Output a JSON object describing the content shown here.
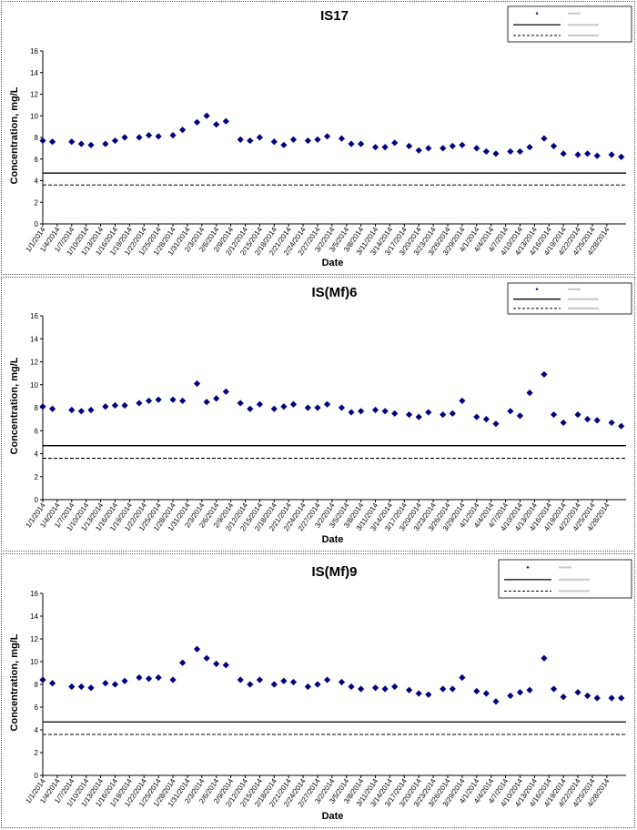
{
  "chart_data": [
    {
      "type": "scatter",
      "title": "IS17",
      "xlabel": "Date",
      "ylabel": "Concentration, mg/L",
      "ylim": [
        0,
        16
      ],
      "yticks": [
        "0",
        "2",
        "4",
        "6",
        "8",
        "10",
        "12",
        "14",
        "16"
      ],
      "x_tick_labels": [
        "1/1/2014",
        "1/4/2014",
        "1/7/2014",
        "1/10/2014",
        "1/13/2014",
        "1/16/2014",
        "1/19/2014",
        "1/22/2014",
        "1/25/2014",
        "1/28/2014",
        "1/31/2014",
        "2/3/2014",
        "2/6/2014",
        "2/9/2014",
        "2/12/2014",
        "2/15/2014",
        "2/18/2014",
        "2/21/2014",
        "2/24/2014",
        "2/27/2014",
        "3/2/2014",
        "3/5/2014",
        "3/8/2014",
        "3/11/2014",
        "3/14/2014",
        "3/17/2014",
        "3/20/2014",
        "3/23/2014",
        "3/26/2014",
        "3/29/2014",
        "4/1/2014",
        "4/4/2014",
        "4/7/2014",
        "4/10/2014",
        "4/13/2014",
        "4/16/2014",
        "4/19/2014",
        "4/22/2014",
        "4/25/2014",
        "4/28/2014"
      ],
      "grid": false,
      "legend_position": "top-right",
      "reference_lines": [
        {
          "style": "solid",
          "value": 4.7
        },
        {
          "style": "dashed",
          "value": 3.6
        }
      ],
      "series": [
        {
          "marker": "diamond",
          "color": "#000080",
          "points": [
            [
              "1/1/2014",
              7.7
            ],
            [
              "1/3/2014",
              7.6
            ],
            [
              "1/7/2014",
              7.6
            ],
            [
              "1/9/2014",
              7.4
            ],
            [
              "1/11/2014",
              7.3
            ],
            [
              "1/14/2014",
              7.4
            ],
            [
              "1/16/2014",
              7.7
            ],
            [
              "1/18/2014",
              8.0
            ],
            [
              "1/21/2014",
              8.0
            ],
            [
              "1/23/2014",
              8.2
            ],
            [
              "1/25/2014",
              8.1
            ],
            [
              "1/28/2014",
              8.2
            ],
            [
              "1/30/2014",
              8.7
            ],
            [
              "2/2/2014",
              9.4
            ],
            [
              "2/4/2014",
              10.0
            ],
            [
              "2/6/2014",
              9.2
            ],
            [
              "2/8/2014",
              9.5
            ],
            [
              "2/11/2014",
              7.8
            ],
            [
              "2/13/2014",
              7.7
            ],
            [
              "2/15/2014",
              8.0
            ],
            [
              "2/18/2014",
              7.6
            ],
            [
              "2/20/2014",
              7.3
            ],
            [
              "2/22/2014",
              7.8
            ],
            [
              "2/25/2014",
              7.7
            ],
            [
              "2/27/2014",
              7.8
            ],
            [
              "3/1/2014",
              8.1
            ],
            [
              "3/4/2014",
              7.9
            ],
            [
              "3/6/2014",
              7.4
            ],
            [
              "3/8/2014",
              7.4
            ],
            [
              "3/11/2014",
              7.1
            ],
            [
              "3/13/2014",
              7.1
            ],
            [
              "3/15/2014",
              7.5
            ],
            [
              "3/18/2014",
              7.2
            ],
            [
              "3/20/2014",
              6.8
            ],
            [
              "3/22/2014",
              7.0
            ],
            [
              "3/25/2014",
              7.0
            ],
            [
              "3/27/2014",
              7.2
            ],
            [
              "3/29/2014",
              7.3
            ],
            [
              "4/1/2014",
              7.0
            ],
            [
              "4/3/2014",
              6.7
            ],
            [
              "4/5/2014",
              6.5
            ],
            [
              "4/8/2014",
              6.7
            ],
            [
              "4/10/2014",
              6.7
            ],
            [
              "4/12/2014",
              7.1
            ],
            [
              "4/15/2014",
              7.9
            ],
            [
              "4/17/2014",
              7.2
            ],
            [
              "4/19/2014",
              6.5
            ],
            [
              "4/22/2014",
              6.4
            ],
            [
              "4/24/2014",
              6.5
            ],
            [
              "4/26/2014",
              6.3
            ],
            [
              "4/29/2014",
              6.4
            ],
            [
              "5/1/2014",
              6.2
            ]
          ]
        }
      ]
    },
    {
      "type": "scatter",
      "title": "IS(Mf)6",
      "xlabel": "Date",
      "ylabel": "Concentration, mg/L",
      "ylim": [
        0,
        16
      ],
      "yticks": [
        "0",
        "2",
        "4",
        "6",
        "8",
        "10",
        "12",
        "14",
        "16"
      ],
      "x_tick_labels": [
        "1/1/2014",
        "1/4/2014",
        "1/7/2014",
        "1/10/2014",
        "1/13/2014",
        "1/16/2014",
        "1/19/2014",
        "1/22/2014",
        "1/25/2014",
        "1/28/2014",
        "1/31/2014",
        "2/3/2014",
        "2/6/2014",
        "2/9/2014",
        "2/12/2014",
        "2/15/2014",
        "2/18/2014",
        "2/21/2014",
        "2/24/2014",
        "2/27/2014",
        "3/2/2014",
        "3/5/2014",
        "3/8/2014",
        "3/11/2014",
        "3/14/2014",
        "3/17/2014",
        "3/20/2014",
        "3/23/2014",
        "3/26/2014",
        "3/29/2014",
        "4/1/2014",
        "4/4/2014",
        "4/7/2014",
        "4/10/2014",
        "4/13/2014",
        "4/16/2014",
        "4/19/2014",
        "4/22/2014",
        "4/25/2014",
        "4/28/2014"
      ],
      "grid": false,
      "legend_position": "top-right",
      "reference_lines": [
        {
          "style": "solid",
          "value": 4.7
        },
        {
          "style": "dashed",
          "value": 3.6
        }
      ],
      "series": [
        {
          "marker": "diamond",
          "color": "#000080",
          "points": [
            [
              "1/1/2014",
              8.1
            ],
            [
              "1/3/2014",
              7.9
            ],
            [
              "1/7/2014",
              7.8
            ],
            [
              "1/9/2014",
              7.7
            ],
            [
              "1/11/2014",
              7.8
            ],
            [
              "1/14/2014",
              8.1
            ],
            [
              "1/16/2014",
              8.2
            ],
            [
              "1/18/2014",
              8.2
            ],
            [
              "1/21/2014",
              8.4
            ],
            [
              "1/23/2014",
              8.6
            ],
            [
              "1/25/2014",
              8.7
            ],
            [
              "1/28/2014",
              8.7
            ],
            [
              "1/30/2014",
              8.6
            ],
            [
              "2/2/2014",
              10.1
            ],
            [
              "2/4/2014",
              8.5
            ],
            [
              "2/6/2014",
              8.8
            ],
            [
              "2/8/2014",
              9.4
            ],
            [
              "2/11/2014",
              8.4
            ],
            [
              "2/13/2014",
              7.9
            ],
            [
              "2/15/2014",
              8.3
            ],
            [
              "2/18/2014",
              7.9
            ],
            [
              "2/20/2014",
              8.1
            ],
            [
              "2/22/2014",
              8.3
            ],
            [
              "2/25/2014",
              8.0
            ],
            [
              "2/27/2014",
              8.0
            ],
            [
              "3/1/2014",
              8.3
            ],
            [
              "3/4/2014",
              8.0
            ],
            [
              "3/6/2014",
              7.6
            ],
            [
              "3/8/2014",
              7.7
            ],
            [
              "3/11/2014",
              7.8
            ],
            [
              "3/13/2014",
              7.7
            ],
            [
              "3/15/2014",
              7.5
            ],
            [
              "3/18/2014",
              7.4
            ],
            [
              "3/20/2014",
              7.2
            ],
            [
              "3/22/2014",
              7.6
            ],
            [
              "3/25/2014",
              7.4
            ],
            [
              "3/27/2014",
              7.5
            ],
            [
              "3/29/2014",
              8.6
            ],
            [
              "4/1/2014",
              7.2
            ],
            [
              "4/3/2014",
              7.0
            ],
            [
              "4/5/2014",
              6.6
            ],
            [
              "4/8/2014",
              7.7
            ],
            [
              "4/10/2014",
              7.3
            ],
            [
              "4/12/2014",
              9.3
            ],
            [
              "4/15/2014",
              10.9
            ],
            [
              "4/17/2014",
              7.4
            ],
            [
              "4/19/2014",
              6.7
            ],
            [
              "4/22/2014",
              7.4
            ],
            [
              "4/24/2014",
              7.0
            ],
            [
              "4/26/2014",
              6.9
            ],
            [
              "4/29/2014",
              6.7
            ],
            [
              "5/1/2014",
              6.4
            ]
          ]
        }
      ]
    },
    {
      "type": "scatter",
      "title": "IS(Mf)9",
      "xlabel": "Date",
      "ylabel": "Concentration, mg/L",
      "ylim": [
        0,
        16
      ],
      "yticks": [
        "0",
        "2",
        "4",
        "6",
        "8",
        "10",
        "12",
        "14",
        "16"
      ],
      "x_tick_labels": [
        "1/1/2014",
        "1/4/2014",
        "1/7/2014",
        "1/10/2014",
        "1/13/2014",
        "1/16/2014",
        "1/19/2014",
        "1/22/2014",
        "1/25/2014",
        "1/28/2014",
        "1/31/2014",
        "2/3/2014",
        "2/6/2014",
        "2/9/2014",
        "2/12/2014",
        "2/15/2014",
        "2/18/2014",
        "2/21/2014",
        "2/24/2014",
        "2/27/2014",
        "3/2/2014",
        "3/5/2014",
        "3/8/2014",
        "3/11/2014",
        "3/14/2014",
        "3/17/2014",
        "3/20/2014",
        "3/23/2014",
        "3/26/2014",
        "3/29/2014",
        "4/1/2014",
        "4/4/2014",
        "4/7/2014",
        "4/10/2014",
        "4/13/2014",
        "4/16/2014",
        "4/19/2014",
        "4/22/2014",
        "4/25/2014",
        "4/28/2014"
      ],
      "grid": false,
      "legend_position": "top-right",
      "reference_lines": [
        {
          "style": "solid",
          "value": 4.7
        },
        {
          "style": "dashed",
          "value": 3.6
        }
      ],
      "series": [
        {
          "marker": "diamond",
          "color": "#000080",
          "points": [
            [
              "1/1/2014",
              8.4
            ],
            [
              "1/3/2014",
              8.1
            ],
            [
              "1/7/2014",
              7.8
            ],
            [
              "1/9/2014",
              7.8
            ],
            [
              "1/11/2014",
              7.7
            ],
            [
              "1/14/2014",
              8.1
            ],
            [
              "1/16/2014",
              8.0
            ],
            [
              "1/18/2014",
              8.3
            ],
            [
              "1/21/2014",
              8.6
            ],
            [
              "1/23/2014",
              8.5
            ],
            [
              "1/25/2014",
              8.6
            ],
            [
              "1/28/2014",
              8.4
            ],
            [
              "1/30/2014",
              9.9
            ],
            [
              "2/2/2014",
              11.1
            ],
            [
              "2/4/2014",
              10.3
            ],
            [
              "2/6/2014",
              9.8
            ],
            [
              "2/8/2014",
              9.7
            ],
            [
              "2/11/2014",
              8.4
            ],
            [
              "2/13/2014",
              8.0
            ],
            [
              "2/15/2014",
              8.4
            ],
            [
              "2/18/2014",
              8.0
            ],
            [
              "2/20/2014",
              8.3
            ],
            [
              "2/22/2014",
              8.2
            ],
            [
              "2/25/2014",
              7.8
            ],
            [
              "2/27/2014",
              8.0
            ],
            [
              "3/1/2014",
              8.4
            ],
            [
              "3/4/2014",
              8.2
            ],
            [
              "3/6/2014",
              7.8
            ],
            [
              "3/8/2014",
              7.6
            ],
            [
              "3/11/2014",
              7.7
            ],
            [
              "3/13/2014",
              7.6
            ],
            [
              "3/15/2014",
              7.8
            ],
            [
              "3/18/2014",
              7.5
            ],
            [
              "3/20/2014",
              7.2
            ],
            [
              "3/22/2014",
              7.1
            ],
            [
              "3/25/2014",
              7.6
            ],
            [
              "3/27/2014",
              7.6
            ],
            [
              "3/29/2014",
              8.6
            ],
            [
              "4/1/2014",
              7.4
            ],
            [
              "4/3/2014",
              7.2
            ],
            [
              "4/5/2014",
              6.5
            ],
            [
              "4/8/2014",
              7.0
            ],
            [
              "4/10/2014",
              7.3
            ],
            [
              "4/12/2014",
              7.5
            ],
            [
              "4/15/2014",
              10.3
            ],
            [
              "4/17/2014",
              7.6
            ],
            [
              "4/19/2014",
              6.9
            ],
            [
              "4/22/2014",
              7.3
            ],
            [
              "4/24/2014",
              7.0
            ],
            [
              "4/26/2014",
              6.8
            ],
            [
              "4/29/2014",
              6.8
            ],
            [
              "5/1/2014",
              6.8
            ]
          ]
        }
      ]
    }
  ]
}
